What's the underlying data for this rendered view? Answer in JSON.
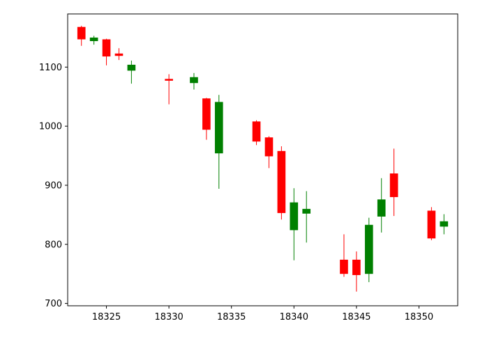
{
  "chart_data": {
    "type": "candlestick",
    "title": "",
    "xlabel": "",
    "ylabel": "",
    "xlim": [
      18321.9,
      18353.1
    ],
    "ylim": [
      696,
      1190
    ],
    "x_ticks": [
      18325,
      18330,
      18335,
      18340,
      18345,
      18350
    ],
    "y_ticks": [
      700,
      800,
      900,
      1000,
      1100
    ],
    "up_color": "#008000",
    "down_color": "#ff0000",
    "candles": [
      {
        "x": 18323,
        "open": 1168,
        "high": 1170,
        "low": 1136,
        "close": 1147
      },
      {
        "x": 18324,
        "open": 1144,
        "high": 1153,
        "low": 1138,
        "close": 1150
      },
      {
        "x": 18325,
        "open": 1147,
        "high": 1148,
        "low": 1103,
        "close": 1118
      },
      {
        "x": 18326,
        "open": 1123,
        "high": 1132,
        "low": 1112,
        "close": 1119
      },
      {
        "x": 18327,
        "open": 1094,
        "high": 1111,
        "low": 1072,
        "close": 1104
      },
      {
        "x": 18330,
        "open": 1080,
        "high": 1088,
        "low": 1037,
        "close": 1077
      },
      {
        "x": 18332,
        "open": 1073,
        "high": 1090,
        "low": 1062,
        "close": 1083
      },
      {
        "x": 18333,
        "open": 1047,
        "high": 1048,
        "low": 977,
        "close": 994
      },
      {
        "x": 18334,
        "open": 954,
        "high": 1053,
        "low": 894,
        "close": 1041
      },
      {
        "x": 18337,
        "open": 1008,
        "high": 1010,
        "low": 968,
        "close": 974
      },
      {
        "x": 18338,
        "open": 981,
        "high": 983,
        "low": 929,
        "close": 949
      },
      {
        "x": 18339,
        "open": 958,
        "high": 966,
        "low": 842,
        "close": 853
      },
      {
        "x": 18340,
        "open": 824,
        "high": 895,
        "low": 773,
        "close": 871
      },
      {
        "x": 18341,
        "open": 852,
        "high": 890,
        "low": 803,
        "close": 860
      },
      {
        "x": 18344,
        "open": 774,
        "high": 817,
        "low": 745,
        "close": 750
      },
      {
        "x": 18345,
        "open": 774,
        "high": 788,
        "low": 720,
        "close": 748
      },
      {
        "x": 18346,
        "open": 750,
        "high": 845,
        "low": 736,
        "close": 833
      },
      {
        "x": 18347,
        "open": 847,
        "high": 912,
        "low": 820,
        "close": 876
      },
      {
        "x": 18348,
        "open": 920,
        "high": 962,
        "low": 848,
        "close": 880
      },
      {
        "x": 18351,
        "open": 857,
        "high": 863,
        "low": 807,
        "close": 810
      },
      {
        "x": 18352,
        "open": 830,
        "high": 851,
        "low": 817,
        "close": 839
      }
    ]
  }
}
